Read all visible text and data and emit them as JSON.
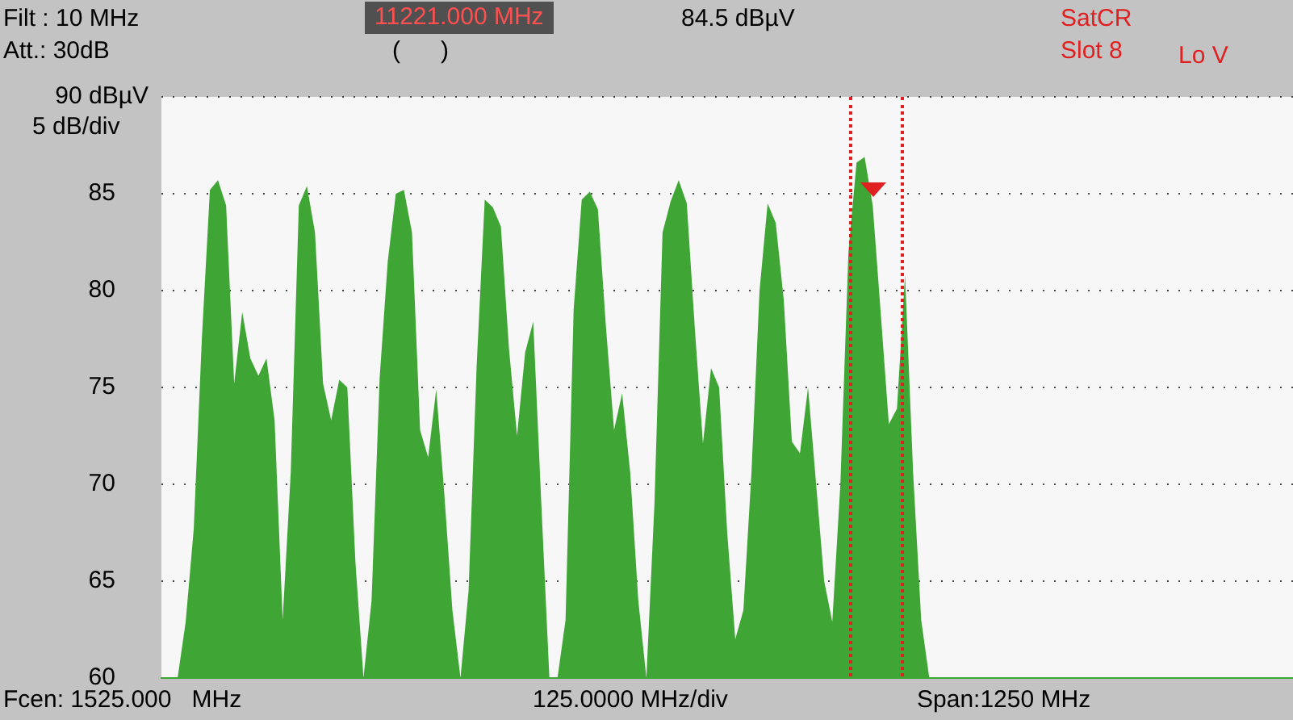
{
  "chart_data": {
    "type": "area",
    "annotations": [
      "Filt : 10 MHz",
      "Att.: 30dB",
      "11221.000 MHz",
      "(      )",
      "84.5 dBµV",
      "SatCR",
      "Slot 8",
      "Lo V",
      "Fcen: 1525.000   MHz",
      "125.0000 MHz/div",
      "Span:1250 MHz"
    ],
    "ylabel": "5 dB/div",
    "categories": [
      null,
      null,
      null,
      null,
      null,
      null,
      null,
      null,
      null,
      null,
      null,
      null,
      null,
      null,
      null,
      null,
      null,
      null,
      null,
      null,
      null,
      null,
      null,
      null,
      null,
      null,
      null,
      null,
      null,
      null,
      null,
      null,
      null,
      null,
      null,
      null,
      null,
      null,
      null,
      null,
      null,
      null,
      null,
      null,
      null,
      null,
      null,
      null,
      null,
      null,
      null,
      null,
      null,
      null,
      null,
      null,
      null,
      null,
      null,
      null,
      null,
      null,
      null,
      null,
      null,
      null,
      null,
      null,
      null,
      null,
      null,
      null,
      null,
      null,
      null,
      null,
      null,
      null,
      null,
      null,
      null,
      null,
      null,
      null,
      null,
      null,
      null,
      null,
      null,
      null,
      null,
      null,
      null,
      null,
      null,
      null,
      null,
      null,
      null,
      null,
      null,
      null,
      null,
      null,
      null,
      null,
      null,
      null,
      null,
      null,
      null,
      null,
      null,
      null,
      null,
      null,
      null,
      null,
      null,
      null,
      null,
      null,
      null,
      null,
      null,
      null,
      null,
      null,
      null,
      null,
      null,
      null,
      null,
      null,
      null,
      null,
      null,
      null,
      null,
      null,
      null
    ],
    "values": [
      60,
      60,
      60,
      62.9,
      67.7,
      77.5,
      85.2,
      85.7,
      84.4,
      75.2,
      78.9,
      76.5,
      75.6,
      76.5,
      73.3,
      63,
      70.6,
      84.4,
      85.4,
      83,
      75.2,
      73.3,
      75.4,
      75,
      66,
      60,
      64,
      75.5,
      81.5,
      85,
      85.2,
      83,
      72.8,
      71.4,
      74.9,
      69.5,
      63.5,
      60,
      64.5,
      76.1,
      84.7,
      84.3,
      83.3,
      77,
      72.5,
      76.8,
      78.4,
      69,
      60,
      60,
      63,
      79,
      84.7,
      85.1,
      84.2,
      78.1,
      72.8,
      74.7,
      70.6,
      64,
      60,
      69,
      83,
      84.6,
      85.7,
      84.5,
      78,
      72.1,
      76,
      75,
      67.5,
      62,
      63.5,
      70.6,
      80,
      84.5,
      83.5,
      79.5,
      72.2,
      71.6,
      75,
      70,
      65,
      62.9,
      70,
      82,
      86.6,
      86.9,
      84.4,
      78.8,
      73.1,
      73.9,
      80.8,
      70.6,
      63,
      60,
      60,
      60,
      60,
      60,
      60,
      60,
      60,
      60,
      60,
      60,
      60,
      60,
      60,
      60,
      60,
      60,
      60,
      60,
      60,
      60,
      60,
      60,
      60,
      60,
      60,
      60,
      60,
      60,
      60,
      60,
      60,
      60,
      60,
      60,
      60,
      60,
      60,
      60,
      60,
      60,
      60,
      60,
      60,
      60,
      60
    ],
    "color": "#3fa535",
    "ylim": [
      60,
      90
    ],
    "yticks": [
      60,
      65,
      70,
      75,
      80,
      85,
      {
        "value": 90,
        "label": "90 dBµV"
      }
    ],
    "grid": "y",
    "tick_labels": "y"
  }
}
